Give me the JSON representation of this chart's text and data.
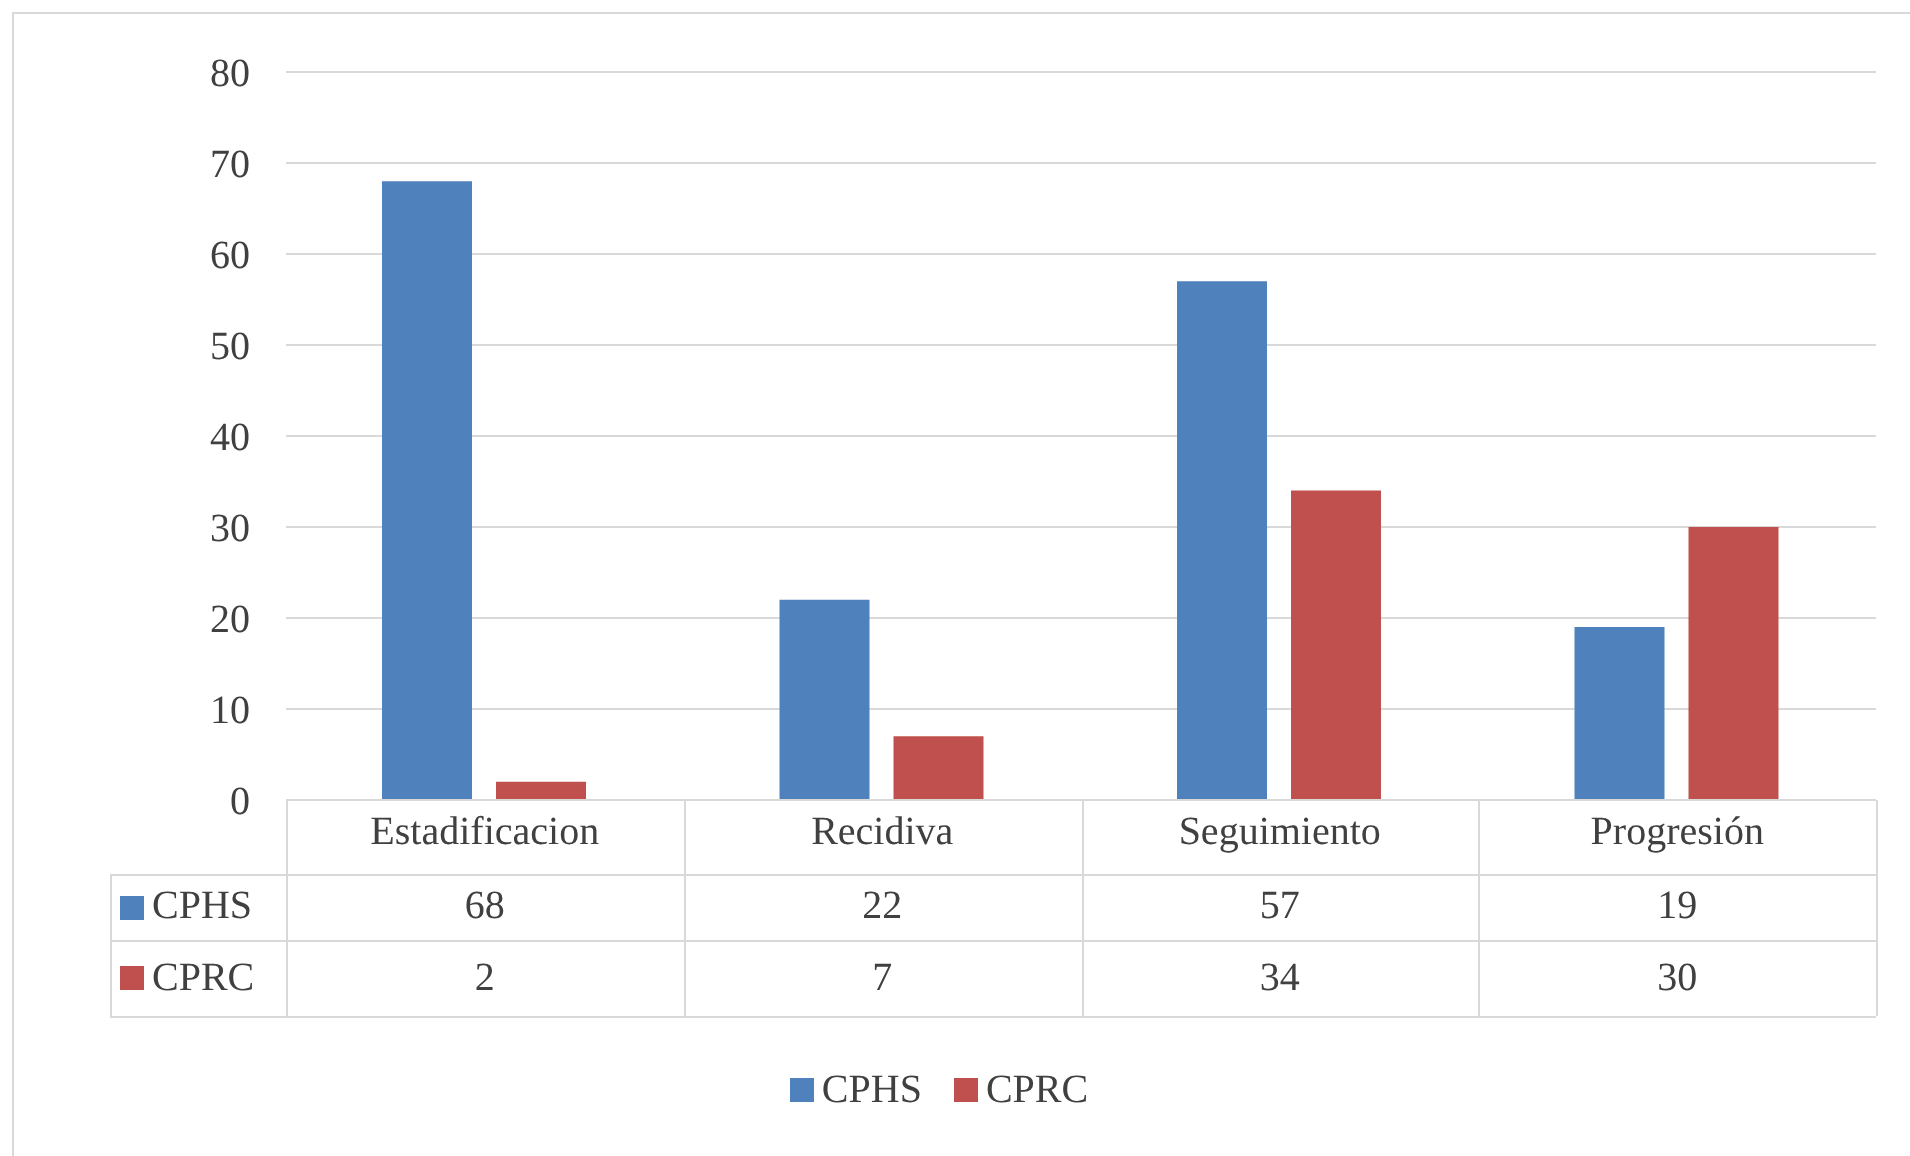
{
  "chart_data": {
    "type": "bar",
    "categories": [
      "Estadificacion",
      "Recidiva",
      "Seguimiento",
      "Progresión"
    ],
    "series": [
      {
        "name": "CPHS",
        "color": "#4f81bd",
        "values": [
          68,
          22,
          57,
          19
        ]
      },
      {
        "name": "CPRC",
        "color": "#c0504d",
        "values": [
          2,
          7,
          34,
          30
        ]
      }
    ],
    "ylim": [
      0,
      80
    ],
    "yticks": [
      0,
      10,
      20,
      30,
      40,
      50,
      60,
      70,
      80
    ],
    "grid": "y",
    "legend": "bottom",
    "data_labels": true
  }
}
